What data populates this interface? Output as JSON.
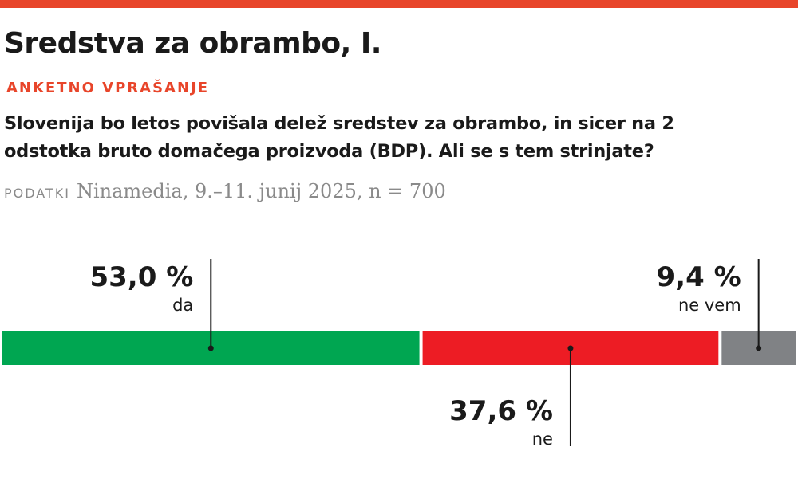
{
  "chart_data": {
    "type": "stacked-bar",
    "title": "Sredstva za obrambo, I.",
    "kicker": "ANKETNO VPRAŠANJE",
    "question": "Slovenija bo letos povišala delež sredstev za obrambo, in sicer na 2 odstotka bruto domačega proizvoda (BDP). Ali se s tem strinjate?",
    "source_label": "PODATKI",
    "source": "Ninamedia, 9.–11. junij 2025, n = 700",
    "categories": [
      "da",
      "ne",
      "ne vem"
    ],
    "values": [
      53.0,
      37.6,
      9.4
    ],
    "value_labels": [
      "53,0 %",
      "37,6 %",
      "9,4 %"
    ],
    "colors": [
      "#00a651",
      "#ed1c24",
      "#808285"
    ]
  }
}
